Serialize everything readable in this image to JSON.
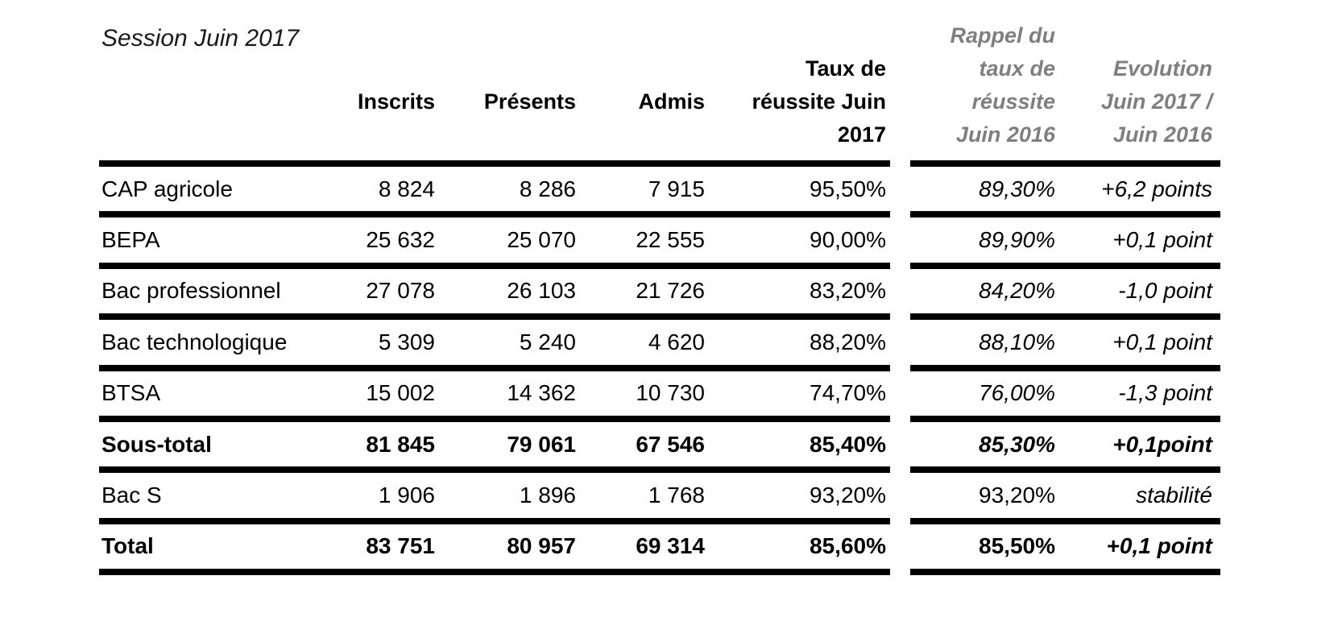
{
  "title": "Session Juin 2017",
  "colors": {
    "text": "#000000",
    "secondary_header": "#7f7f7f",
    "border": "#000000",
    "background": "#ffffff"
  },
  "table": {
    "columns": {
      "inscrits": "Inscrits",
      "presents": "Présents",
      "admis": "Admis",
      "taux2017": "Taux de\nréussite Juin\n2017",
      "rappel2016": "Rappel du\ntaux de\nréussite\nJuin 2016",
      "evolution": "Evolution\nJuin 2017 /\nJuin 2016"
    },
    "rows": [
      {
        "label": "CAP agricole",
        "inscrits": "8 824",
        "presents": "8 286",
        "admis": "7 915",
        "taux": "95,50%",
        "rappel": "89,30%",
        "evolution": "+6,2 points"
      },
      {
        "label": "BEPA",
        "inscrits": "25 632",
        "presents": "25 070",
        "admis": "22 555",
        "taux": "90,00%",
        "rappel": "89,90%",
        "evolution": "+0,1 point"
      },
      {
        "label": "Bac professionnel",
        "inscrits": "27 078",
        "presents": "26 103",
        "admis": "21 726",
        "taux": "83,20%",
        "rappel": "84,20%",
        "evolution": "-1,0 point"
      },
      {
        "label": "Bac technologique",
        "inscrits": "5 309",
        "presents": "5 240",
        "admis": "4 620",
        "taux": "88,20%",
        "rappel": "88,10%",
        "evolution": "+0,1 point"
      },
      {
        "label": "BTSA",
        "inscrits": "15 002",
        "presents": "14 362",
        "admis": "10 730",
        "taux": "74,70%",
        "rappel": "76,00%",
        "evolution": "-1,3 point"
      },
      {
        "label": "Sous-total",
        "inscrits": "81 845",
        "presents": "79 061",
        "admis": "67 546",
        "taux": "85,40%",
        "rappel": "85,30%",
        "evolution": "+0,1point"
      },
      {
        "label": "Bac S",
        "inscrits": "1 906",
        "presents": "1 896",
        "admis": "1 768",
        "taux": "93,20%",
        "rappel": "93,20%",
        "evolution": "stabilité"
      },
      {
        "label": "Total",
        "inscrits": "83 751",
        "presents": "80 957",
        "admis": "69 314",
        "taux": "85,60%",
        "rappel": "85,50%",
        "evolution": "+0,1 point"
      }
    ]
  }
}
